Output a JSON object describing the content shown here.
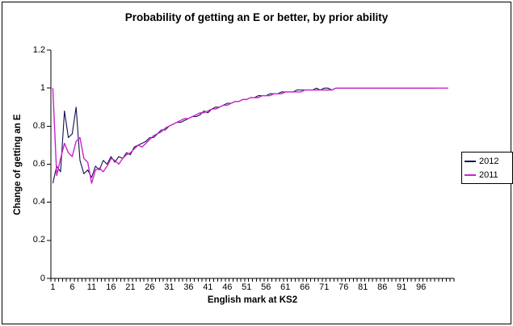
{
  "chart_data": {
    "type": "line",
    "title": "Probability of getting an E or better, by prior ability",
    "xlabel": "English mark at KS2",
    "ylabel": "Change of getting an E",
    "ylim": [
      0,
      1.2
    ],
    "y_tick_labels": [
      "0",
      "0.2",
      "0.4",
      "0.6",
      "0.8",
      "1",
      "1.2"
    ],
    "x_tick_labels": [
      1,
      6,
      11,
      16,
      21,
      26,
      31,
      36,
      41,
      46,
      51,
      56,
      61,
      66,
      71,
      76,
      81,
      86,
      91,
      96
    ],
    "x_categories_total": 104,
    "grid": false,
    "legend_position": "right",
    "series": [
      {
        "name": "2012",
        "color": "#10104a",
        "width": 1.1,
        "x_start": 1,
        "values": [
          0.5,
          0.59,
          0.56,
          0.88,
          0.74,
          0.76,
          0.9,
          0.62,
          0.55,
          0.57,
          0.53,
          0.59,
          0.57,
          0.62,
          0.6,
          0.64,
          0.61,
          0.64,
          0.63,
          0.66,
          0.65,
          0.69,
          0.7,
          0.71,
          0.72,
          0.74,
          0.74,
          0.76,
          0.78,
          0.78,
          0.8,
          0.81,
          0.82,
          0.82,
          0.83,
          0.84,
          0.85,
          0.85,
          0.86,
          0.88,
          0.87,
          0.89,
          0.9,
          0.9,
          0.91,
          0.92,
          0.92,
          0.93,
          0.93,
          0.94,
          0.94,
          0.95,
          0.95,
          0.96,
          0.96,
          0.96,
          0.97,
          0.97,
          0.97,
          0.98,
          0.98,
          0.98,
          0.98,
          0.99,
          0.99,
          0.99,
          0.99,
          0.99,
          1.0,
          0.99,
          1.0,
          1.0,
          0.99,
          1.0,
          1.0,
          1.0,
          1.0,
          1.0,
          1.0,
          1.0,
          1.0,
          1.0,
          1.0,
          1.0,
          1.0,
          1.0,
          1.0,
          1.0,
          1.0,
          1.0,
          1.0,
          1.0,
          1.0,
          1.0,
          1.0,
          1.0,
          1.0,
          1.0,
          1.0,
          1.0
        ]
      },
      {
        "name": "2011",
        "color": "#cc22cc",
        "width": 1.4,
        "x_start": 1,
        "values": [
          1.0,
          0.54,
          0.63,
          0.71,
          0.66,
          0.64,
          0.72,
          0.74,
          0.63,
          0.61,
          0.5,
          0.57,
          0.58,
          0.56,
          0.59,
          0.63,
          0.62,
          0.6,
          0.63,
          0.65,
          0.66,
          0.68,
          0.7,
          0.69,
          0.71,
          0.73,
          0.75,
          0.76,
          0.77,
          0.79,
          0.8,
          0.81,
          0.82,
          0.83,
          0.84,
          0.84,
          0.85,
          0.86,
          0.87,
          0.87,
          0.88,
          0.89,
          0.89,
          0.9,
          0.91,
          0.91,
          0.92,
          0.93,
          0.93,
          0.94,
          0.94,
          0.95,
          0.95,
          0.95,
          0.96,
          0.96,
          0.96,
          0.97,
          0.97,
          0.97,
          0.98,
          0.98,
          0.98,
          0.98,
          0.98,
          0.99,
          0.99,
          0.99,
          0.99,
          0.99,
          0.99,
          0.99,
          0.99,
          1.0,
          1.0,
          1.0,
          1.0,
          1.0,
          1.0,
          1.0,
          1.0,
          1.0,
          1.0,
          1.0,
          1.0,
          1.0,
          1.0,
          1.0,
          1.0,
          1.0,
          1.0,
          1.0,
          1.0,
          1.0,
          1.0,
          1.0,
          1.0,
          1.0,
          1.0,
          1.0,
          1.0,
          1.0,
          1.0
        ]
      }
    ]
  }
}
